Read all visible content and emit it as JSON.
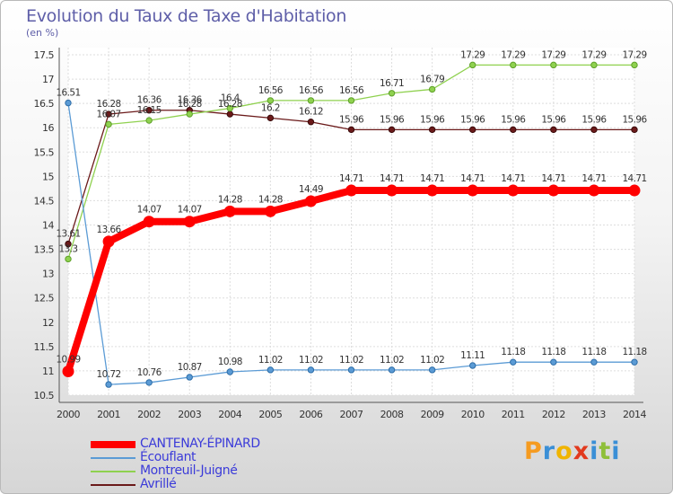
{
  "header": {
    "title": "Evolution du Taux de Taxe d'Habitation",
    "unit": "(en %)"
  },
  "brand": {
    "text": "Proxiti",
    "colors": [
      "#f59b20",
      "#3a8fd6",
      "#f0b400",
      "#e23a1e",
      "#3a8fd6",
      "#8fbf3a",
      "#3a8fd6"
    ]
  },
  "chart_data": {
    "type": "line",
    "title": "Evolution du Taux de Taxe d'Habitation",
    "ylabel": "(en %)",
    "xlabel": "",
    "x": [
      "2000",
      "2001",
      "2002",
      "2003",
      "2004",
      "2005",
      "2006",
      "2007",
      "2008",
      "2009",
      "2010",
      "2011",
      "2012",
      "2013",
      "2014"
    ],
    "yticks": [
      "10.5",
      "11",
      "11.5",
      "12",
      "12.5",
      "13",
      "13.5",
      "14",
      "14.5",
      "15",
      "15.5",
      "16",
      "16.5",
      "17",
      "17.5"
    ],
    "ylim": [
      10.5,
      17.5
    ],
    "grid": true,
    "legend_position": "bottom-left",
    "series": [
      {
        "name": "CANTENAY-ÉPINARD",
        "color": "#ff0000",
        "values": [
          10.99,
          13.66,
          14.07,
          14.07,
          14.28,
          14.28,
          14.49,
          14.71,
          14.71,
          14.71,
          14.71,
          14.71,
          14.71,
          14.71,
          14.71
        ],
        "labels": [
          "10.99",
          "13.66",
          "14.07",
          "14.07",
          "14.28",
          "14.28",
          "14.49",
          "14.71",
          "14.71",
          "14.71",
          "14.71",
          "14.71",
          "14.71",
          "14.71",
          "14.71"
        ]
      },
      {
        "name": "Écouflant",
        "color": "#5b9bd5",
        "values": [
          16.51,
          10.72,
          10.76,
          10.87,
          10.98,
          11.02,
          11.02,
          11.02,
          11.02,
          11.02,
          11.11,
          11.18,
          11.18,
          11.18,
          11.18
        ],
        "labels": [
          "16.51",
          "10.72",
          "10.76",
          "10.87",
          "10.98",
          "11.02",
          "11.02",
          "11.02",
          "11.02",
          "11.02",
          "11.11",
          "11.18",
          "11.18",
          "11.18",
          "11.18"
        ]
      },
      {
        "name": "Montreuil-Juigné",
        "color": "#8fd14f",
        "values": [
          13.3,
          16.07,
          16.15,
          16.28,
          16.4,
          16.56,
          16.56,
          16.56,
          16.71,
          16.79,
          17.29,
          17.29,
          17.29,
          17.29,
          17.29
        ],
        "labels": [
          "13.3",
          "16.07",
          "16.15",
          "16.28",
          "16.4",
          "16.56",
          "16.56",
          "16.56",
          "16.71",
          "16.79",
          "17.29",
          "17.29",
          "17.29",
          "17.29",
          "17.29"
        ]
      },
      {
        "name": "Avrillé",
        "color": "#6b1a1a",
        "values": [
          13.61,
          16.28,
          16.36,
          16.36,
          16.28,
          16.2,
          16.12,
          15.96,
          15.96,
          15.96,
          15.96,
          15.96,
          15.96,
          15.96,
          15.96
        ],
        "labels": [
          "13.61",
          "16.28",
          "16.36",
          "16.36",
          "16.28",
          "16.2",
          "16.12",
          "15.96",
          "15.96",
          "15.96",
          "15.96",
          "15.96",
          "15.96",
          "15.96",
          "15.96"
        ]
      }
    ]
  }
}
